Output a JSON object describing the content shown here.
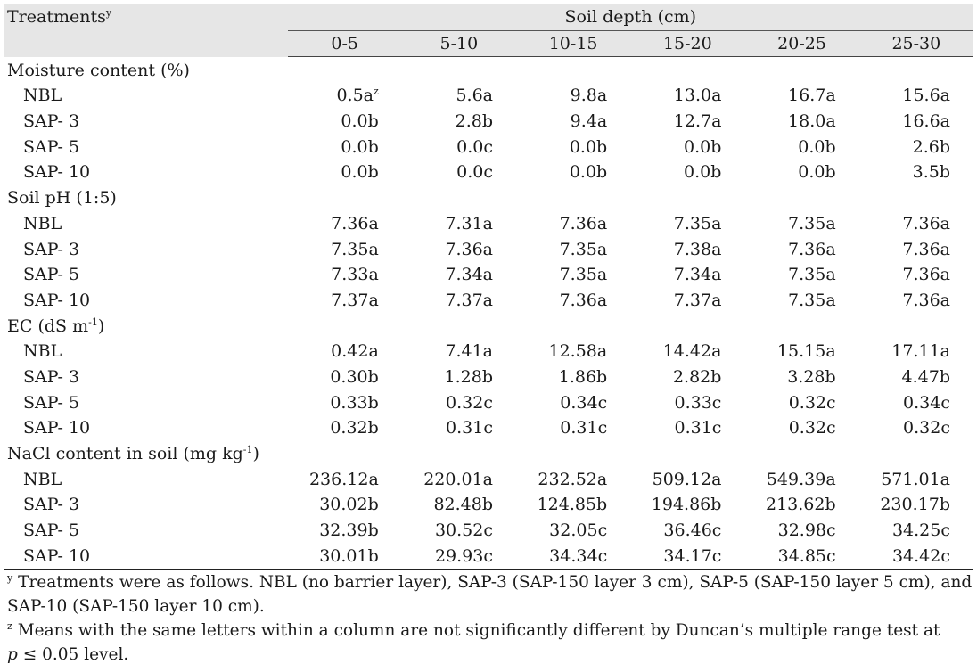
{
  "header": {
    "treatments_label": "Treatments",
    "treatments_sup": "y",
    "soil_depth_label": "Soil depth (cm)",
    "depths": [
      "0-5",
      "5-10",
      "10-15",
      "15-20",
      "20-25",
      "25-30"
    ]
  },
  "sections": [
    {
      "title": "Moisture content (%)",
      "title_sup": "",
      "title_suffix": "",
      "rows": [
        {
          "label": "NBL",
          "values": [
            "0.5a",
            "5.6a",
            "9.8a",
            "13.0a",
            "16.7a",
            "15.6a"
          ],
          "first_sup": "z"
        },
        {
          "label": "SAP- 3",
          "values": [
            "0.0b",
            "2.8b",
            "9.4a",
            "12.7a",
            "18.0a",
            "16.6a"
          ]
        },
        {
          "label": "SAP- 5",
          "values": [
            "0.0b",
            "0.0c",
            "0.0b",
            "0.0b",
            "0.0b",
            "2.6b"
          ]
        },
        {
          "label": "SAP- 10",
          "values": [
            "0.0b",
            "0.0c",
            "0.0b",
            "0.0b",
            "0.0b",
            "3.5b"
          ]
        }
      ]
    },
    {
      "title": "Soil pH (1:5)",
      "title_sup": "",
      "title_suffix": "",
      "rows": [
        {
          "label": "NBL",
          "values": [
            "7.36a",
            "7.31a",
            "7.36a",
            "7.35a",
            "7.35a",
            "7.36a"
          ]
        },
        {
          "label": "SAP- 3",
          "values": [
            "7.35a",
            "7.36a",
            "7.35a",
            "7.38a",
            "7.36a",
            "7.36a"
          ]
        },
        {
          "label": "SAP- 5",
          "values": [
            "7.33a",
            "7.34a",
            "7.35a",
            "7.34a",
            "7.35a",
            "7.36a"
          ]
        },
        {
          "label": "SAP- 10",
          "values": [
            "7.37a",
            "7.37a",
            "7.36a",
            "7.37a",
            "7.35a",
            "7.36a"
          ]
        }
      ]
    },
    {
      "title": "EC (dS m",
      "title_sup": "-1",
      "title_suffix": ")",
      "rows": [
        {
          "label": "NBL",
          "values": [
            "0.42a",
            "7.41a",
            "12.58a",
            "14.42a",
            "15.15a",
            "17.11a"
          ]
        },
        {
          "label": "SAP- 3",
          "values": [
            "0.30b",
            "1.28b",
            "1.86b",
            "2.82b",
            "3.28b",
            "4.47b"
          ]
        },
        {
          "label": "SAP- 5",
          "values": [
            "0.33b",
            "0.32c",
            "0.34c",
            "0.33c",
            "0.32c",
            "0.34c"
          ]
        },
        {
          "label": "SAP- 10",
          "values": [
            "0.32b",
            "0.31c",
            "0.31c",
            "0.31c",
            "0.32c",
            "0.32c"
          ]
        }
      ]
    },
    {
      "title": "NaCl content in soil (mg kg",
      "title_sup": "-1",
      "title_suffix": ")",
      "rows": [
        {
          "label": "NBL",
          "values": [
            "236.12a",
            "220.01a",
            "232.52a",
            "509.12a",
            "549.39a",
            "571.01a"
          ]
        },
        {
          "label": "SAP- 3",
          "values": [
            "30.02b",
            "82.48b",
            "124.85b",
            "194.86b",
            "213.62b",
            "230.17b"
          ]
        },
        {
          "label": "SAP- 5",
          "values": [
            "32.39b",
            "30.52c",
            "32.05c",
            "36.46c",
            "32.98c",
            "34.25c"
          ]
        },
        {
          "label": "SAP- 10",
          "values": [
            "30.01b",
            "29.93c",
            "34.34c",
            "34.17c",
            "34.85c",
            "34.42c"
          ]
        }
      ]
    }
  ],
  "footnotes": {
    "y_mark": "y",
    "y_text": "Treatments were as follows. NBL (no barrier layer), SAP-3 (SAP-150 layer 3 cm), SAP-5 (SAP-150 layer 5 cm), and SAP-10 (SAP-150 layer 10 cm).",
    "z_mark": "z",
    "z_text": "Means with the same letters within a column are not significantly different by Duncan’s multiple range test at",
    "z_p": "p",
    "z_tail": "≤ 0.05 level."
  }
}
